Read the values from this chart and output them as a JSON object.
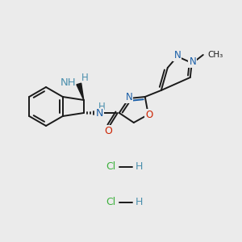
{
  "bg": "#ebebeb",
  "bc": "#1a1a1a",
  "nc": "#1a5fa8",
  "oc": "#cc2200",
  "nhc": "#4a8fad",
  "clc": "#3cb03c",
  "lw": 1.4,
  "fs": 8.0,
  "figsize": [
    3.0,
    3.0
  ],
  "dpi": 100,
  "hcl1": [
    150,
    207
  ],
  "hcl2": [
    150,
    251
  ]
}
